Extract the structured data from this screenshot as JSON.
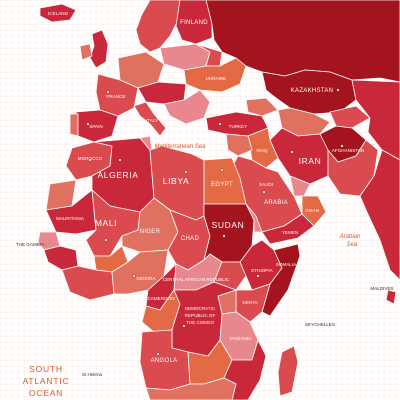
{
  "colors": {
    "ocean": "#ffffff",
    "grid": "#f1d9d6",
    "dark_red": "#a3141f",
    "red": "#c8283a",
    "mid_red": "#d94b4e",
    "salmon": "#e0705f",
    "pink": "#e8888e",
    "orange": "#e46a45",
    "deep": "#8d0f1c",
    "water_label": "#d85a2a"
  },
  "labels": {
    "finland": "FINLAND",
    "iceland": "ICELAND",
    "kazakhstan": "KAZAKHSTAN",
    "ukraine": "UKRAINE",
    "spain": "SPAIN",
    "italy": "ITALY",
    "france": "FRANCE",
    "turkey": "TURKEY",
    "iran": "IRAN",
    "afghanistan": "AFGHANISTAN",
    "morocco": "MOROCCO",
    "algeria": "ALGERIA",
    "libya": "LIBYA",
    "egypt": "EGYPT",
    "saudi": "SAUDI",
    "arabia": "ARABIA",
    "mauritania": "MAURITANIA",
    "mali": "MALI",
    "niger": "NIGER",
    "chad": "CHAD",
    "sudan": "SUDAN",
    "nigeria": "NIGERIA",
    "ethiopia": "ETHIOPIA",
    "car": "CENTRAL AFRICAN REPUBLIC",
    "drc_1": "DEMOCRATIC",
    "drc_2": "REPUBLIC OF",
    "drc_3": "THE CONGO",
    "tanzania": "TANZANIA",
    "angola": "ANGOLA",
    "gambia": "THE GAMBIA",
    "cameroon": "CAMEROON",
    "kenya": "KENYA",
    "somalia": "SOMALIA",
    "yemen": "YEMEN",
    "oman": "OMAN",
    "iraq": "IRAQ"
  },
  "water": {
    "mediterranean": "Mediterranean Sea",
    "arabian_1": "Arabian",
    "arabian_2": "Sea",
    "south_atlantic_1": "SOUTH",
    "south_atlantic_2": "ATLANTIC",
    "south_atlantic_3": "OCEAN",
    "maldives": "MALDIVES",
    "seychelles": "SEYCHELLES",
    "st_helena": "St Helena"
  }
}
